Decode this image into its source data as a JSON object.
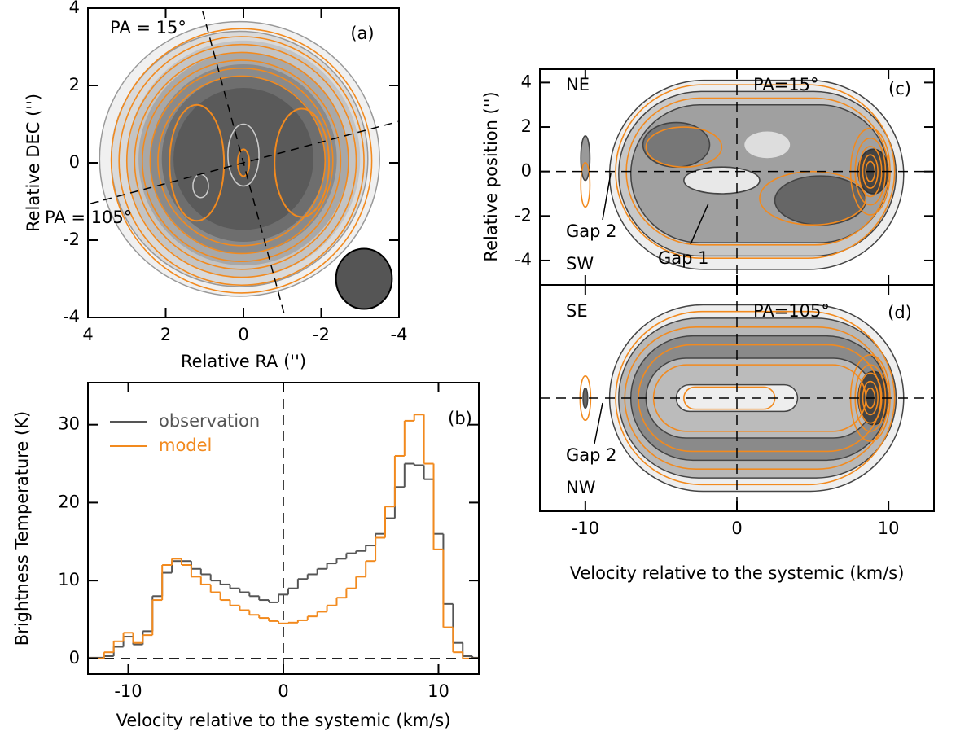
{
  "chart_data": [
    {
      "type": "image",
      "xlabel": "Relative RA ('')",
      "ylabel": "Relative DEC ('')",
      "xlim": [
        4,
        -4
      ],
      "ylim": [
        -4,
        4
      ],
      "xticks": [
        4,
        2,
        0,
        -2,
        -4
      ],
      "yticks": [
        -4,
        -2,
        0,
        2,
        4
      ],
      "annotations": [
        "PA = 15°",
        "PA = 105°",
        "(a)"
      ]
    },
    {
      "type": "step",
      "xlabel": "Velocity relative to the systemic (km/s)",
      "ylabel": "Brightness Temperature (K)",
      "xlim": [
        -12.6,
        12.6
      ],
      "ylim": [
        -2,
        35.4
      ],
      "xticks": [
        -10,
        0,
        10
      ],
      "yticks": [
        0,
        10,
        20,
        30
      ],
      "zero_lines": true,
      "annotations": [
        "(b)"
      ],
      "x": [
        -12.5,
        -11.875,
        -11.25,
        -10.625,
        -10,
        -9.375,
        -8.75,
        -8.125,
        -7.5,
        -6.875,
        -6.25,
        -5.625,
        -5,
        -4.375,
        -3.75,
        -3.125,
        -2.5,
        -1.875,
        -1.25,
        -0.625,
        0,
        0.625,
        1.25,
        1.875,
        2.5,
        3.125,
        3.75,
        4.375,
        5,
        5.625,
        6.25,
        6.875,
        7.5,
        8.125,
        8.75,
        9.375,
        10,
        10.625,
        11.25,
        11.875,
        12.5
      ],
      "series": [
        {
          "name": "observation",
          "color": "#555555",
          "values": [
            0.1,
            0.1,
            0.3,
            1.5,
            2.8,
            1.8,
            3.5,
            8,
            11,
            12.5,
            12.5,
            11.5,
            10.8,
            10,
            9.5,
            9,
            8.5,
            8,
            7.5,
            7.2,
            8.2,
            9,
            10.2,
            10.8,
            11.5,
            12.2,
            12.8,
            13.5,
            13.8,
            14.5,
            16,
            18,
            22,
            25,
            24.8,
            23,
            16,
            7,
            2,
            0.3,
            0.1
          ]
        },
        {
          "name": "model",
          "color": "#f28a1e",
          "values": [
            0,
            0,
            0.8,
            2.2,
            3.3,
            2,
            3,
            7.5,
            12,
            12.8,
            12,
            10.5,
            9.5,
            8.5,
            7.5,
            6.8,
            6.2,
            5.6,
            5.2,
            4.8,
            4.5,
            4.6,
            4.9,
            5.4,
            6,
            6.8,
            7.8,
            9,
            10.5,
            12.5,
            15.5,
            19.5,
            26,
            30.5,
            31.3,
            25,
            14,
            4,
            0.8,
            0,
            0
          ]
        }
      ]
    },
    {
      "type": "image",
      "ylabel": "Relative position ('')",
      "xlim": [
        -13,
        13
      ],
      "ylim": [
        -5.1,
        4.6
      ],
      "xticks": [
        -10,
        0,
        10
      ],
      "xtick_labels": false,
      "yticks": [
        -4,
        -2,
        0,
        2,
        4
      ],
      "zero_lines": true,
      "annotations": [
        "NE",
        "PA=15°",
        "(c)",
        "Gap 2",
        "SW",
        "Gap 1"
      ]
    },
    {
      "type": "image",
      "xlabel": "Velocity relative to the systemic (km/s)",
      "xlim": [
        -13,
        13
      ],
      "ylim": [
        -5.1,
        5.1
      ],
      "xticks": [
        -10,
        0,
        10
      ],
      "zero_lines": true,
      "annotations": [
        "SE",
        "PA=105°",
        "(d)",
        "Gap 2",
        "NW"
      ]
    }
  ]
}
